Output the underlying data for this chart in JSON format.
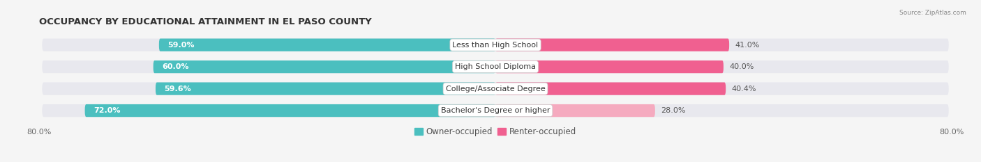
{
  "title": "OCCUPANCY BY EDUCATIONAL ATTAINMENT IN EL PASO COUNTY",
  "source": "Source: ZipAtlas.com",
  "categories": [
    "Less than High School",
    "High School Diploma",
    "College/Associate Degree",
    "Bachelor's Degree or higher"
  ],
  "owner_pct": [
    59.0,
    60.0,
    59.6,
    72.0
  ],
  "renter_pct": [
    41.0,
    40.0,
    40.4,
    28.0
  ],
  "owner_color": "#4BBFBF",
  "renter_colors": [
    "#F06090",
    "#F06090",
    "#F06090",
    "#F5AABF"
  ],
  "xlim_left": -80.0,
  "xlim_right": 80.0,
  "bar_height": 0.58,
  "bg_color": "#f5f5f5",
  "bar_bg_color": "#e8e8ee",
  "title_fontsize": 9.5,
  "label_fontsize": 8.0,
  "tick_fontsize": 8,
  "legend_fontsize": 8.5,
  "owner_label_color": "white",
  "renter_label_color": "#555555",
  "cat_label_fontsize": 8.0
}
